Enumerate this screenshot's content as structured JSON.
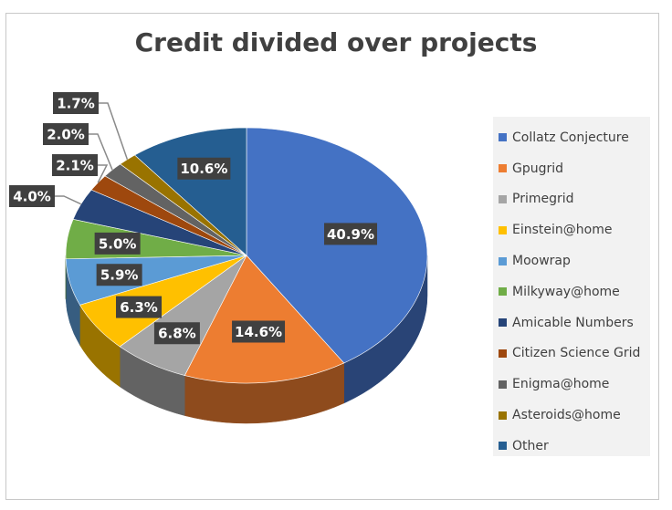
{
  "chart_data": {
    "type": "pie",
    "title": "Credit divided over projects",
    "slices": [
      {
        "name": "Collatz Conjecture",
        "value": 40.9,
        "label": "40.9%",
        "color": "#4472C4"
      },
      {
        "name": "Gpugrid",
        "value": 14.6,
        "label": "14.6%",
        "color": "#ED7D31"
      },
      {
        "name": "Primegrid",
        "value": 6.8,
        "label": "6.8%",
        "color": "#A5A5A5"
      },
      {
        "name": "Einstein@home",
        "value": 6.3,
        "label": "6.3%",
        "color": "#FFC000"
      },
      {
        "name": "Moowrap",
        "value": 5.9,
        "label": "5.9%",
        "color": "#5B9BD5"
      },
      {
        "name": "Milkyway@home",
        "value": 5.0,
        "label": "5.0%",
        "color": "#70AD47"
      },
      {
        "name": "Amicable Numbers",
        "value": 4.0,
        "label": "4.0%",
        "color": "#264478"
      },
      {
        "name": "Citizen Science Grid",
        "value": 2.1,
        "label": "2.1%",
        "color": "#9E480E"
      },
      {
        "name": "Enigma@home",
        "value": 2.0,
        "label": "2.0%",
        "color": "#636363"
      },
      {
        "name": "Asteroids@home",
        "value": 1.7,
        "label": "1.7%",
        "color": "#997300"
      },
      {
        "name": "Other",
        "value": 10.6,
        "label": "10.6%",
        "color": "#255E91"
      }
    ],
    "legend_position": "right",
    "style": "3d"
  }
}
